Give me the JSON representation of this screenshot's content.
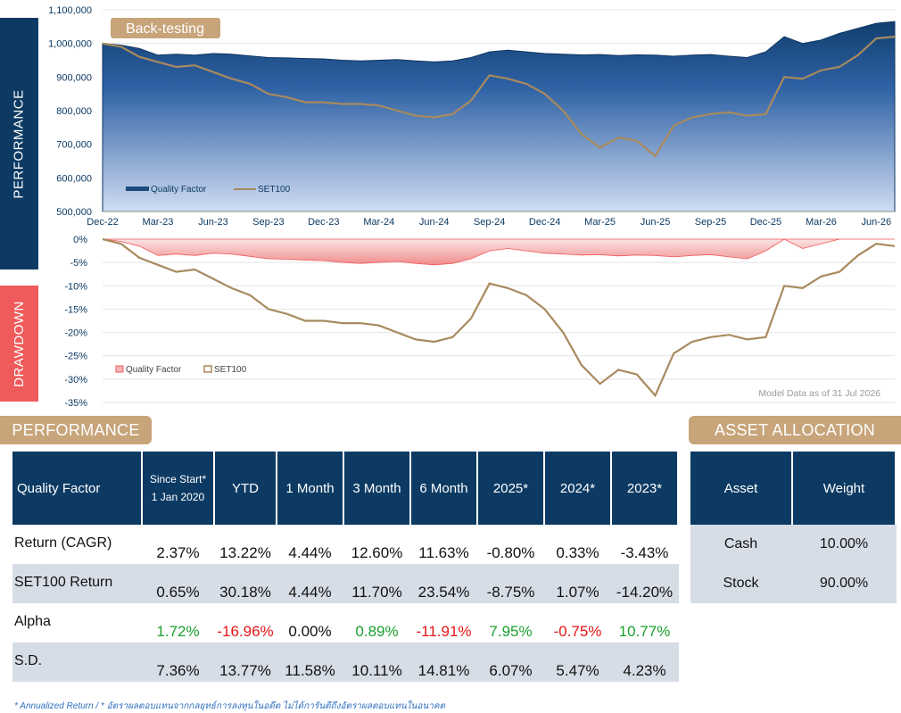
{
  "labels": {
    "performance_tab": "PERFORMANCE",
    "drawdown_tab": "DRAWDOWN",
    "backtest_badge": "Back-testing",
    "model_note": "Model Data as of 31 Jul 2026",
    "perf_header": "PERFORMANCE",
    "alloc_header": "ASSET ALLOCATION",
    "footnote": "* Annualized Return  /  * อัตราผลตอบแทนจากกลยุทธ์การลงทุนในอดีต ไม่ได้การันตีถึงอัตราผลตอบแทนในอนาคต"
  },
  "colors": {
    "navy": "#0c3a63",
    "gold": "#a88a5e",
    "red": "#ef5a5a",
    "tan": "#c7a47a"
  },
  "chart_data": [
    {
      "type": "area",
      "x": [
        "Dec-22",
        "Jan-23",
        "Feb-23",
        "Mar-23",
        "Apr-23",
        "May-23",
        "Jun-23",
        "Jul-23",
        "Aug-23",
        "Sep-23",
        "Oct-23",
        "Nov-23",
        "Dec-23",
        "Jan-24",
        "Feb-24",
        "Mar-24",
        "Apr-24",
        "May-24",
        "Jun-24",
        "Jul-24",
        "Aug-24",
        "Sep-24",
        "Oct-24",
        "Nov-24",
        "Dec-24",
        "Jan-25",
        "Feb-25",
        "Mar-25",
        "Apr-25",
        "May-25",
        "Jun-25",
        "Jul-25",
        "Aug-25",
        "Sep-25",
        "Oct-25",
        "Nov-25",
        "Dec-25",
        "Jan-26",
        "Feb-26",
        "Mar-26",
        "Apr-26",
        "May-26",
        "Jun-26",
        "Jul-26"
      ],
      "xticks": [
        "Dec-22",
        "Mar-23",
        "Jun-23",
        "Sep-23",
        "Dec-23",
        "Mar-24",
        "Jun-24",
        "Sep-24",
        "Dec-24",
        "Mar-25",
        "Jun-25",
        "Sep-25",
        "Dec-25",
        "Mar-26",
        "Jun-26"
      ],
      "yticks": [
        500000,
        600000,
        700000,
        800000,
        900000,
        1000000,
        1100000
      ],
      "ytick_labels": [
        "500,000",
        "600,000",
        "700,000",
        "800,000",
        "900,000",
        "1,000,000",
        "1,100,000"
      ],
      "ylim": [
        500000,
        1100000
      ],
      "series": [
        {
          "name": "Quality Factor",
          "values": [
            1000000,
            995000,
            985000,
            965000,
            968000,
            965000,
            970000,
            968000,
            963000,
            958000,
            957000,
            955000,
            954000,
            950000,
            948000,
            950000,
            952000,
            948000,
            945000,
            948000,
            958000,
            975000,
            980000,
            975000,
            970000,
            968000,
            966000,
            967000,
            964000,
            966000,
            965000,
            962000,
            965000,
            967000,
            962000,
            958000,
            975000,
            1020000,
            1000000,
            1010000,
            1030000,
            1045000,
            1060000,
            1065000
          ]
        },
        {
          "name": "SET100",
          "values": [
            1000000,
            990000,
            960000,
            945000,
            930000,
            935000,
            915000,
            895000,
            880000,
            850000,
            840000,
            825000,
            825000,
            820000,
            820000,
            815000,
            800000,
            785000,
            780000,
            790000,
            830000,
            905000,
            895000,
            880000,
            850000,
            800000,
            730000,
            690000,
            720000,
            710000,
            665000,
            755000,
            780000,
            790000,
            795000,
            785000,
            790000,
            900000,
            895000,
            920000,
            930000,
            965000,
            1015000,
            1020000
          ]
        }
      ]
    },
    {
      "type": "area",
      "x": [
        "Dec-22",
        "Jan-23",
        "Feb-23",
        "Mar-23",
        "Apr-23",
        "May-23",
        "Jun-23",
        "Jul-23",
        "Aug-23",
        "Sep-23",
        "Oct-23",
        "Nov-23",
        "Dec-23",
        "Jan-24",
        "Feb-24",
        "Mar-24",
        "Apr-24",
        "May-24",
        "Jun-24",
        "Jul-24",
        "Aug-24",
        "Sep-24",
        "Oct-24",
        "Nov-24",
        "Dec-24",
        "Jan-25",
        "Feb-25",
        "Mar-25",
        "Apr-25",
        "May-25",
        "Jun-25",
        "Jul-25",
        "Aug-25",
        "Sep-25",
        "Oct-25",
        "Nov-25",
        "Dec-25",
        "Jan-26",
        "Feb-26",
        "Mar-26",
        "Apr-26",
        "May-26",
        "Jun-26",
        "Jul-26"
      ],
      "yticks": [
        0,
        -5,
        -10,
        -15,
        -20,
        -25,
        -30,
        -35
      ],
      "ytick_labels": [
        "0%",
        "-5%",
        "-10%",
        "-15%",
        "-20%",
        "-25%",
        "-30%",
        "-35%"
      ],
      "ylim": [
        -35,
        0
      ],
      "series": [
        {
          "name": "Quality Factor",
          "values": [
            0,
            -0.5,
            -1.5,
            -3.5,
            -3.2,
            -3.5,
            -3,
            -3.2,
            -3.7,
            -4.2,
            -4.3,
            -4.5,
            -4.6,
            -5,
            -5.2,
            -5,
            -4.8,
            -5.2,
            -5.5,
            -5.2,
            -4.2,
            -2.5,
            -2,
            -2.5,
            -3,
            -3.2,
            -3.4,
            -3.3,
            -3.6,
            -3.4,
            -3.5,
            -3.8,
            -3.5,
            -3.3,
            -3.8,
            -4.2,
            -2.5,
            0,
            -2,
            -1,
            0,
            0,
            0,
            0
          ]
        },
        {
          "name": "SET100",
          "values": [
            0,
            -1,
            -4,
            -5.5,
            -7,
            -6.5,
            -8.5,
            -10.5,
            -12,
            -15,
            -16,
            -17.5,
            -17.5,
            -18,
            -18,
            -18.5,
            -20,
            -21.5,
            -22,
            -21,
            -17,
            -9.5,
            -10.5,
            -12,
            -15,
            -20,
            -27,
            -31,
            -28,
            -29,
            -33.5,
            -24.5,
            -22,
            -21,
            -20.5,
            -21.5,
            -21,
            -10,
            -10.5,
            -8,
            -7,
            -3.5,
            -1,
            -1.5
          ]
        }
      ]
    }
  ],
  "perf_table": {
    "headers": [
      "Quality Factor",
      "Since Start*",
      "1 Jan 2020",
      "YTD",
      "1 Month",
      "3 Month",
      "6 Month",
      "2025*",
      "2024*",
      "2023*"
    ],
    "rows": [
      {
        "label": "Return (CAGR)",
        "cells": [
          "2.37%",
          "13.22%",
          "4.44%",
          "12.60%",
          "11.63%",
          "-0.80%",
          "0.33%",
          "-3.43%"
        ]
      },
      {
        "label": "SET100 Return",
        "cells": [
          "0.65%",
          "30.18%",
          "4.44%",
          "11.70%",
          "23.54%",
          "-8.75%",
          "1.07%",
          "-14.20%"
        ]
      },
      {
        "label": "Alpha",
        "cells": [
          "1.72%",
          "-16.96%",
          "0.00%",
          "0.89%",
          "-11.91%",
          "7.95%",
          "-0.75%",
          "10.77%"
        ]
      },
      {
        "label": "S.D.",
        "cells": [
          "7.36%",
          "13.77%",
          "11.58%",
          "10.11%",
          "14.81%",
          "6.07%",
          "5.47%",
          "4.23%"
        ]
      }
    ]
  },
  "alloc_table": {
    "headers": [
      "Asset",
      "Weight"
    ],
    "rows": [
      {
        "asset": "Cash",
        "weight": "10.00%"
      },
      {
        "asset": "Stock",
        "weight": "90.00%"
      }
    ]
  }
}
